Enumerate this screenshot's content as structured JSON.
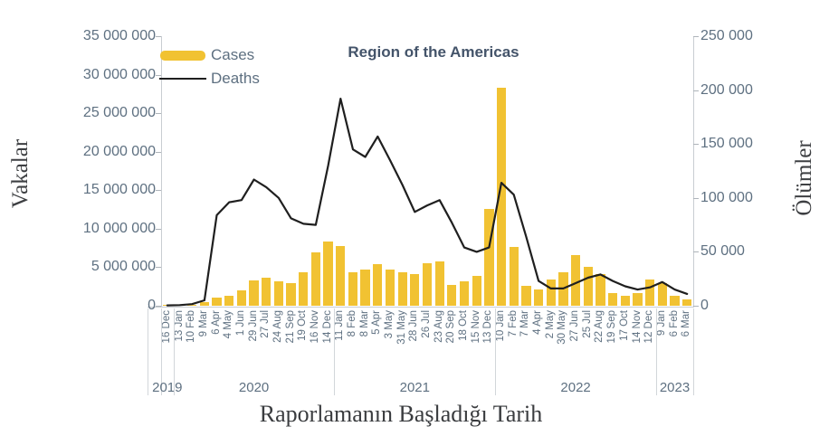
{
  "chart_data": {
    "type": "combo",
    "title": "Region of the Americas",
    "x_axis_label": "Raporlamanın Başladığı Tarih",
    "categories": [
      "16 Dec",
      "13 Jan",
      "10 Feb",
      "9 Mar",
      "6 Apr",
      "4 May",
      "1 Jun",
      "29 Jun",
      "27 Jul",
      "24 Aug",
      "21 Sep",
      "19 Oct",
      "16 Nov",
      "14 Dec",
      "11 Jan",
      "8 Feb",
      "8 Mar",
      "5 Apr",
      "3 May",
      "31 May",
      "28 Jun",
      "26 Jul",
      "23 Aug",
      "20 Sep",
      "18 Oct",
      "15 Nov",
      "13 Dec",
      "10 Jan",
      "7 Feb",
      "7 Mar",
      "4 Apr",
      "2 May",
      "30 May",
      "27 Jun",
      "25 Jul",
      "22 Aug",
      "19 Sep",
      "17 Oct",
      "14 Nov",
      "12 Dec",
      "9 Jan",
      "6 Feb",
      "6 Mar"
    ],
    "year_groups": [
      {
        "label": "2019",
        "start": 0,
        "end": 0
      },
      {
        "label": "2020",
        "start": 1,
        "end": 13
      },
      {
        "label": "2021",
        "start": 14,
        "end": 26
      },
      {
        "label": "2022",
        "start": 27,
        "end": 39
      },
      {
        "label": "2023",
        "start": 40,
        "end": 42
      }
    ],
    "series": [
      {
        "name": "Cases",
        "type": "bar",
        "yaxis": "left",
        "color": "#f1c232",
        "values": [
          5000,
          30000,
          120000,
          420000,
          1050000,
          1350000,
          2000000,
          3350000,
          3650000,
          3150000,
          2900000,
          4400000,
          6950000,
          8350000,
          7700000,
          4400000,
          4750000,
          5450000,
          4650000,
          4350000,
          4150000,
          5500000,
          5800000,
          2700000,
          3200000,
          3850000,
          12600000,
          28300000,
          7650000,
          2550000,
          2100000,
          3450000,
          4350000,
          6550000,
          5050000,
          4100000,
          1700000,
          1350000,
          1650000,
          3450000,
          2950000,
          1250000,
          800000
        ]
      },
      {
        "name": "Deaths",
        "type": "line",
        "yaxis": "right",
        "color": "#1f1f1f",
        "values": [
          300,
          600,
          1500,
          5000,
          84000,
          96000,
          98000,
          117000,
          110000,
          100000,
          81000,
          76000,
          75000,
          130000,
          192000,
          145000,
          138000,
          157000,
          135000,
          112000,
          87000,
          93000,
          98000,
          77000,
          54000,
          50000,
          54000,
          114000,
          103000,
          64000,
          23000,
          16000,
          16000,
          21000,
          26000,
          29000,
          23000,
          18000,
          15000,
          17000,
          22000,
          15000,
          11000
        ]
      }
    ],
    "left_axis": {
      "label": "Vakalar",
      "range": [
        0,
        35000000
      ],
      "ticks": [
        "35 000 000",
        "30 000 000",
        "25 000 000",
        "20 000 000",
        "15 000 000",
        "10 000 000",
        "5 000 000",
        "0"
      ]
    },
    "right_axis": {
      "label": "Ölümler",
      "range": [
        0,
        250000
      ],
      "ticks": [
        "250 000",
        "200 000",
        "150 000",
        "100 000",
        "50 000",
        "0"
      ]
    },
    "grid": false,
    "legend_position": "top-left-inside"
  }
}
